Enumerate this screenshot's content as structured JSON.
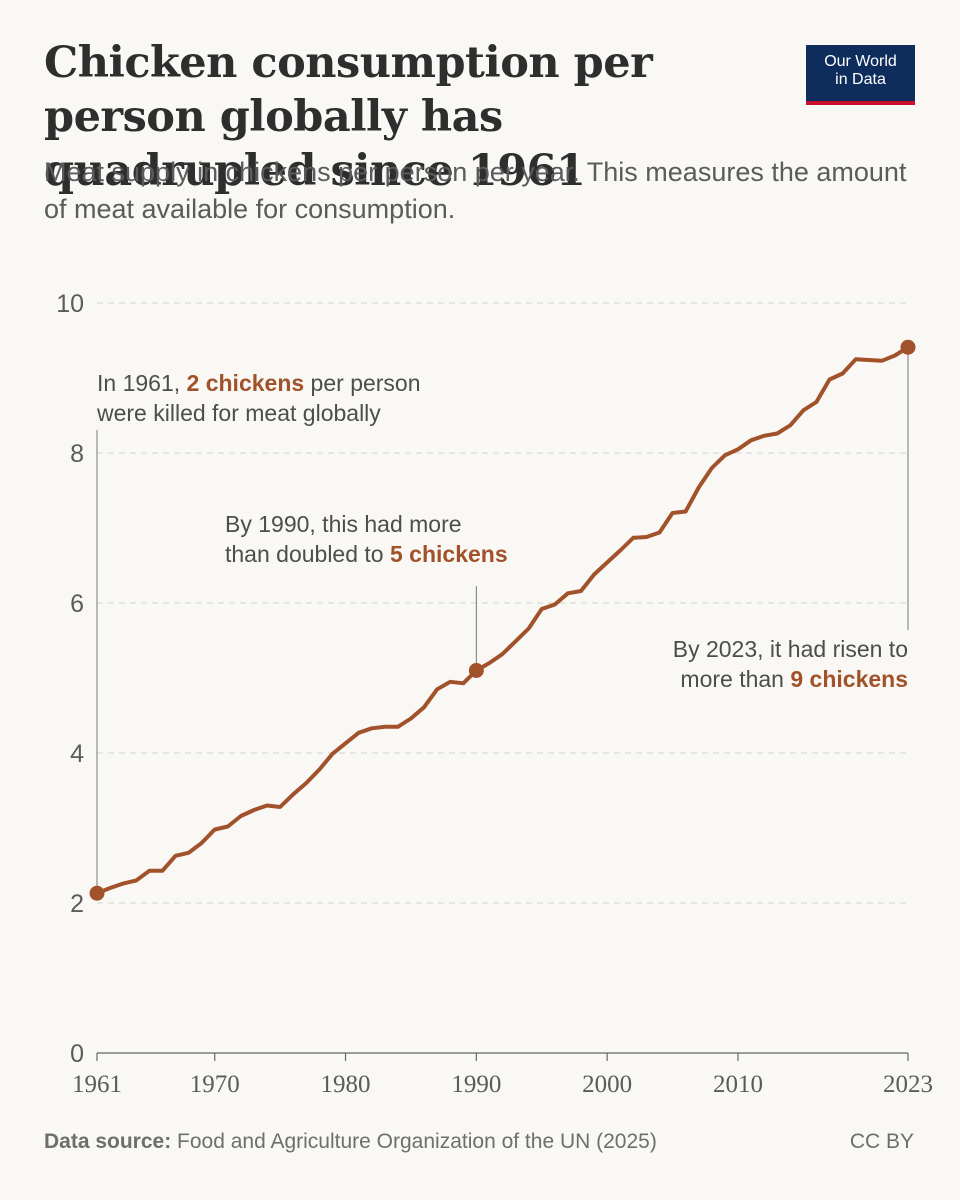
{
  "header": {
    "title": "Chicken consumption per person globally has quadrupled since 1961",
    "subtitle": "Meat supply in chickens per person per year. This measures the amount of meat available for consumption.",
    "logo_line1": "Our World",
    "logo_line2": "in Data"
  },
  "annotations": {
    "a1961": {
      "pre": "In 1961, ",
      "highlight": "2 chickens",
      "post": " per person",
      "line2": "were killed for meat globally"
    },
    "a1990": {
      "line1": "By 1990, this had more",
      "pre": "than doubled to ",
      "highlight": "5 chickens"
    },
    "a2023": {
      "line1": "By 2023, it had risen to",
      "pre": "more than ",
      "highlight": "9 chickens"
    }
  },
  "footer": {
    "source_label": "Data source:",
    "source_text": " Food and Agriculture Organization of the UN (2025)",
    "license": "CC BY"
  },
  "colors": {
    "line": "#a1522a",
    "grid": "#d9d9d9",
    "axis": "#666666"
  },
  "chart_data": {
    "type": "line",
    "title": "Chicken consumption per person globally has quadrupled since 1961",
    "xlabel": "",
    "ylabel": "",
    "ylim": [
      0,
      10
    ],
    "xlim": [
      1961,
      2023
    ],
    "yticks": [
      0,
      2,
      4,
      6,
      8,
      10
    ],
    "xticks": [
      1961,
      1970,
      1980,
      1990,
      2000,
      2010,
      2023
    ],
    "grid": "horizontal dashed",
    "highlight_points": [
      1961,
      1990,
      2023
    ],
    "series": [
      {
        "x": [
          1961,
          1962,
          1963,
          1964,
          1965,
          1966,
          1967,
          1968,
          1969,
          1970,
          1971,
          1972,
          1973,
          1974,
          1975,
          1976,
          1977,
          1978,
          1979,
          1980,
          1981,
          1982,
          1983,
          1984,
          1985,
          1986,
          1987,
          1988,
          1989,
          1990,
          1991,
          1992,
          1993,
          1994,
          1995,
          1996,
          1997,
          1998,
          1999,
          2000,
          2001,
          2002,
          2003,
          2004,
          2005,
          2006,
          2007,
          2008,
          2009,
          2010,
          2011,
          2012,
          2013,
          2014,
          2015,
          2016,
          2017,
          2018,
          2019,
          2020,
          2021,
          2022,
          2023
        ],
        "values": [
          2.13,
          2.2,
          2.26,
          2.3,
          2.43,
          2.43,
          2.63,
          2.67,
          2.8,
          2.98,
          3.02,
          3.16,
          3.24,
          3.3,
          3.28,
          3.45,
          3.6,
          3.78,
          3.99,
          4.13,
          4.27,
          4.33,
          4.35,
          4.35,
          4.46,
          4.61,
          4.85,
          4.95,
          4.93,
          5.1,
          5.2,
          5.32,
          5.49,
          5.66,
          5.92,
          5.98,
          6.13,
          6.16,
          6.38,
          6.54,
          6.7,
          6.87,
          6.88,
          6.94,
          7.2,
          7.22,
          7.54,
          7.8,
          7.97,
          8.05,
          8.17,
          8.23,
          8.26,
          8.37,
          8.57,
          8.68,
          8.98,
          9.06,
          9.25,
          9.24,
          9.23,
          9.3,
          9.41
        ]
      }
    ]
  }
}
